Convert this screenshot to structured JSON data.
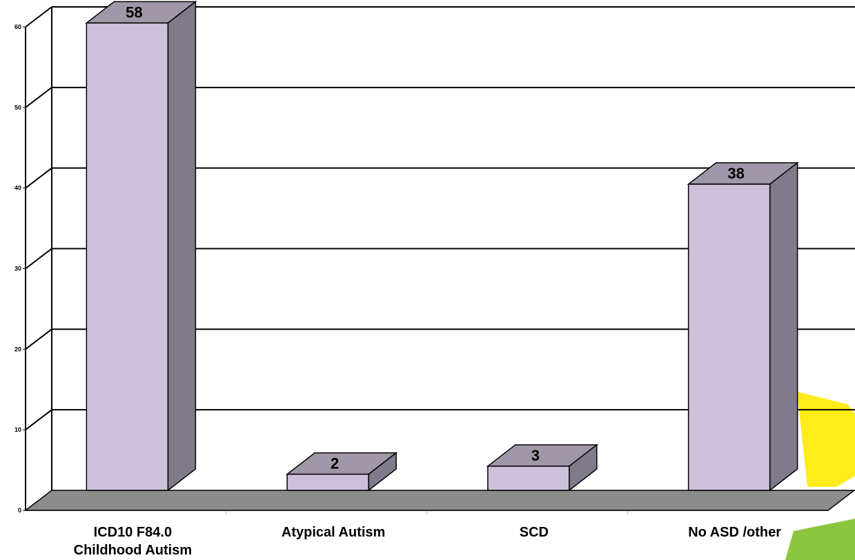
{
  "chart_data": {
    "type": "bar",
    "categories": [
      [
        "ICD10 F84.0",
        "Childhood Autism"
      ],
      [
        "Atypical Autism"
      ],
      [
        "SCD"
      ],
      [
        "No ASD /other"
      ]
    ],
    "values": [
      58,
      2,
      3,
      38
    ],
    "data_labels": [
      "58",
      "2",
      "3",
      "38"
    ],
    "ylim": [
      0,
      60
    ],
    "yticks": [
      0,
      10,
      20,
      30,
      40,
      50,
      60
    ],
    "ytick_labels": [
      "0",
      "10",
      "20",
      "30",
      "40",
      "50",
      "60"
    ],
    "grid": true,
    "three_d": true,
    "colors": {
      "bar_front": "#ccc0da",
      "bar_top": "#a097a8",
      "bar_side": "#807a8a",
      "floor": "#8c8c8c",
      "decor_yellow": "#ffec1a",
      "decor_green": "#8cc63f"
    }
  }
}
